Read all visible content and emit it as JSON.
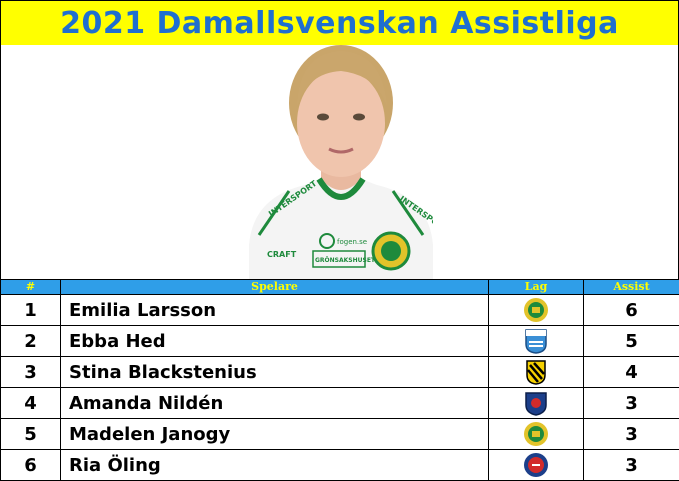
{
  "title": "2021 Damallsvenskan Assistliga",
  "portrait": {
    "jersey_texts": [
      "INTERSPORT",
      "INTERSPORT",
      "fogen.se",
      "CRAFT",
      "GRÖNSAKSHUSET"
    ]
  },
  "table": {
    "headers": {
      "rank": "#",
      "player": "Spelare",
      "team": "Lag",
      "assist": "Assist"
    },
    "rows": [
      {
        "rank": "1",
        "player": "Emilia Larsson",
        "team_icon": "hammarby-crest-icon",
        "assist": "6"
      },
      {
        "rank": "2",
        "player": "Ebba Hed",
        "team_icon": "vittsjo-crest-icon",
        "assist": "5"
      },
      {
        "rank": "3",
        "player": "Stina Blackstenius",
        "team_icon": "hacken-crest-icon",
        "assist": "4"
      },
      {
        "rank": "4",
        "player": "Amanda Nildén",
        "team_icon": "eskilstuna-crest-icon",
        "assist": "3"
      },
      {
        "rank": "5",
        "player": "Madelen Janogy",
        "team_icon": "hammarby-crest-icon",
        "assist": "3"
      },
      {
        "rank": "6",
        "player": "Ria Öling",
        "team_icon": "rosengard-crest-icon",
        "assist": "3"
      }
    ]
  },
  "colors": {
    "title_background": "#ffff00",
    "title_text": "#1f6fd0",
    "header_background": "#2f9ee8",
    "header_text": "#ffff00",
    "hammarby_green": "#1e8a3c",
    "hammarby_gold": "#e2c32a"
  }
}
